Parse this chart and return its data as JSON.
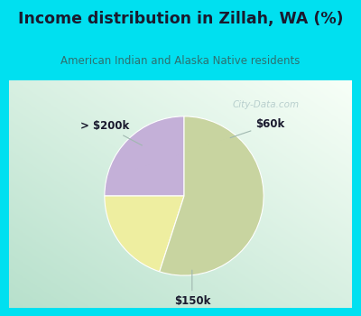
{
  "title": "Income distribution in Zillah, WA (%)",
  "subtitle": "American Indian and Alaska Native residents",
  "slices": [
    {
      "label": "$60k",
      "value": 25,
      "color": "#c4b0d8"
    },
    {
      "label": "> $200k",
      "value": 20,
      "color": "#eeeea0"
    },
    {
      "label": "$150k",
      "value": 55,
      "color": "#c8d4a0"
    }
  ],
  "header_bg": "#00e0f0",
  "title_color": "#1a1a2e",
  "subtitle_color": "#2e7070",
  "watermark": "City-Data.com",
  "watermark_color": "#b0c8c8",
  "label_color": "#1a1a2e",
  "start_angle": 90,
  "chart_bg": "#e8f4ee",
  "annotation_line_color": "#a0b8b0",
  "pie_edge_color": "#ffffff"
}
